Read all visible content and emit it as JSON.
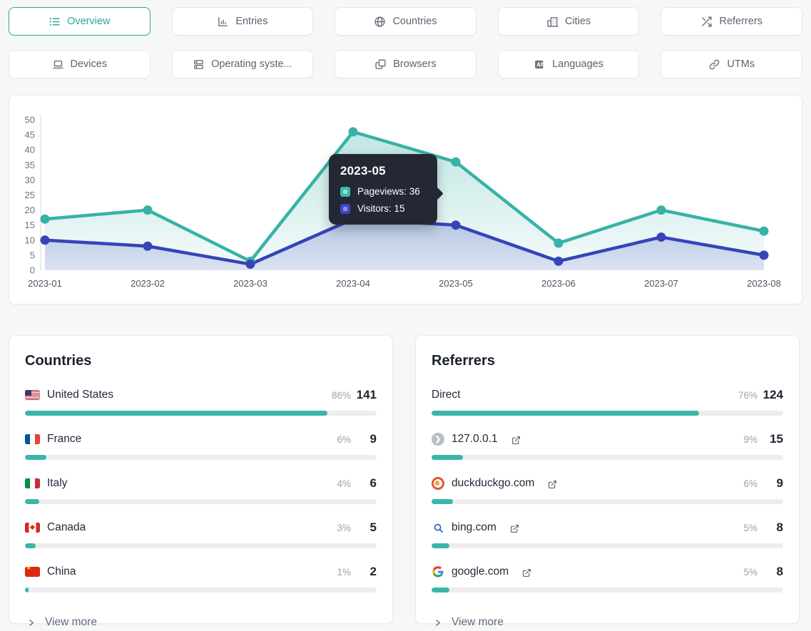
{
  "colors": {
    "accent_teal": "#2aa79b",
    "chart_teal": "#38b2a6",
    "chart_indigo": "#3544b8",
    "bar_fill": "#3cb5a9",
    "tooltip_bg": "#232834"
  },
  "tabs": [
    {
      "label": "Overview",
      "icon": "list-icon",
      "active": true
    },
    {
      "label": "Entries",
      "icon": "bar-chart-icon",
      "active": false
    },
    {
      "label": "Countries",
      "icon": "globe-icon",
      "active": false
    },
    {
      "label": "Cities",
      "icon": "buildings-icon",
      "active": false
    },
    {
      "label": "Referrers",
      "icon": "shuffle-icon",
      "active": false
    },
    {
      "label": "Devices",
      "icon": "laptop-icon",
      "active": false
    },
    {
      "label": "Operating syste...",
      "icon": "server-stack-icon",
      "active": false
    },
    {
      "label": "Browsers",
      "icon": "windows-icon",
      "active": false
    },
    {
      "label": "Languages",
      "icon": "translate-icon",
      "active": false
    },
    {
      "label": "UTMs",
      "icon": "link-icon",
      "active": false
    }
  ],
  "chart_data": {
    "type": "area",
    "x": [
      "2023-01",
      "2023-02",
      "2023-03",
      "2023-04",
      "2023-05",
      "2023-06",
      "2023-07",
      "2023-08"
    ],
    "series": [
      {
        "name": "Pageviews",
        "color": "#38b2a6",
        "values": [
          17,
          20,
          3,
          46,
          36,
          9,
          20,
          13
        ]
      },
      {
        "name": "Visitors",
        "color": "#3544b8",
        "values": [
          10,
          8,
          2,
          17,
          15,
          3,
          11,
          5
        ]
      }
    ],
    "ylim": [
      0,
      50
    ],
    "ytick_step": 5,
    "grid": false,
    "legend": "tooltip-only",
    "tooltip": {
      "title": "2023-05",
      "items": [
        {
          "series": "Pageviews",
          "value": 36,
          "text": "Pageviews: 36"
        },
        {
          "series": "Visitors",
          "value": 15,
          "text": "Visitors: 15"
        }
      ]
    }
  },
  "countries": {
    "title": "Countries",
    "rows": [
      {
        "flag": "us-flag",
        "label": "United States",
        "percent": "86%",
        "value": "141"
      },
      {
        "flag": "france-flag",
        "label": "France",
        "percent": "6%",
        "value": "9"
      },
      {
        "flag": "italy-flag",
        "label": "Italy",
        "percent": "4%",
        "value": "6"
      },
      {
        "flag": "canada-flag",
        "label": "Canada",
        "percent": "3%",
        "value": "5"
      },
      {
        "flag": "china-flag",
        "label": "China",
        "percent": "1%",
        "value": "2"
      }
    ],
    "view_more": "View more"
  },
  "referrers": {
    "title": "Referrers",
    "rows": [
      {
        "icon": "none",
        "label": "Direct",
        "percent": "76%",
        "value": "124",
        "external_link": false
      },
      {
        "icon": "default-favicon",
        "label": "127.0.0.1",
        "percent": "9%",
        "value": "15",
        "external_link": true
      },
      {
        "icon": "duckduckgo-favicon",
        "label": "duckduckgo.com",
        "percent": "6%",
        "value": "9",
        "external_link": true
      },
      {
        "icon": "bing-favicon",
        "label": "bing.com",
        "percent": "5%",
        "value": "8",
        "external_link": true
      },
      {
        "icon": "google-favicon",
        "label": "google.com",
        "percent": "5%",
        "value": "8",
        "external_link": true
      }
    ],
    "view_more": "View more"
  }
}
